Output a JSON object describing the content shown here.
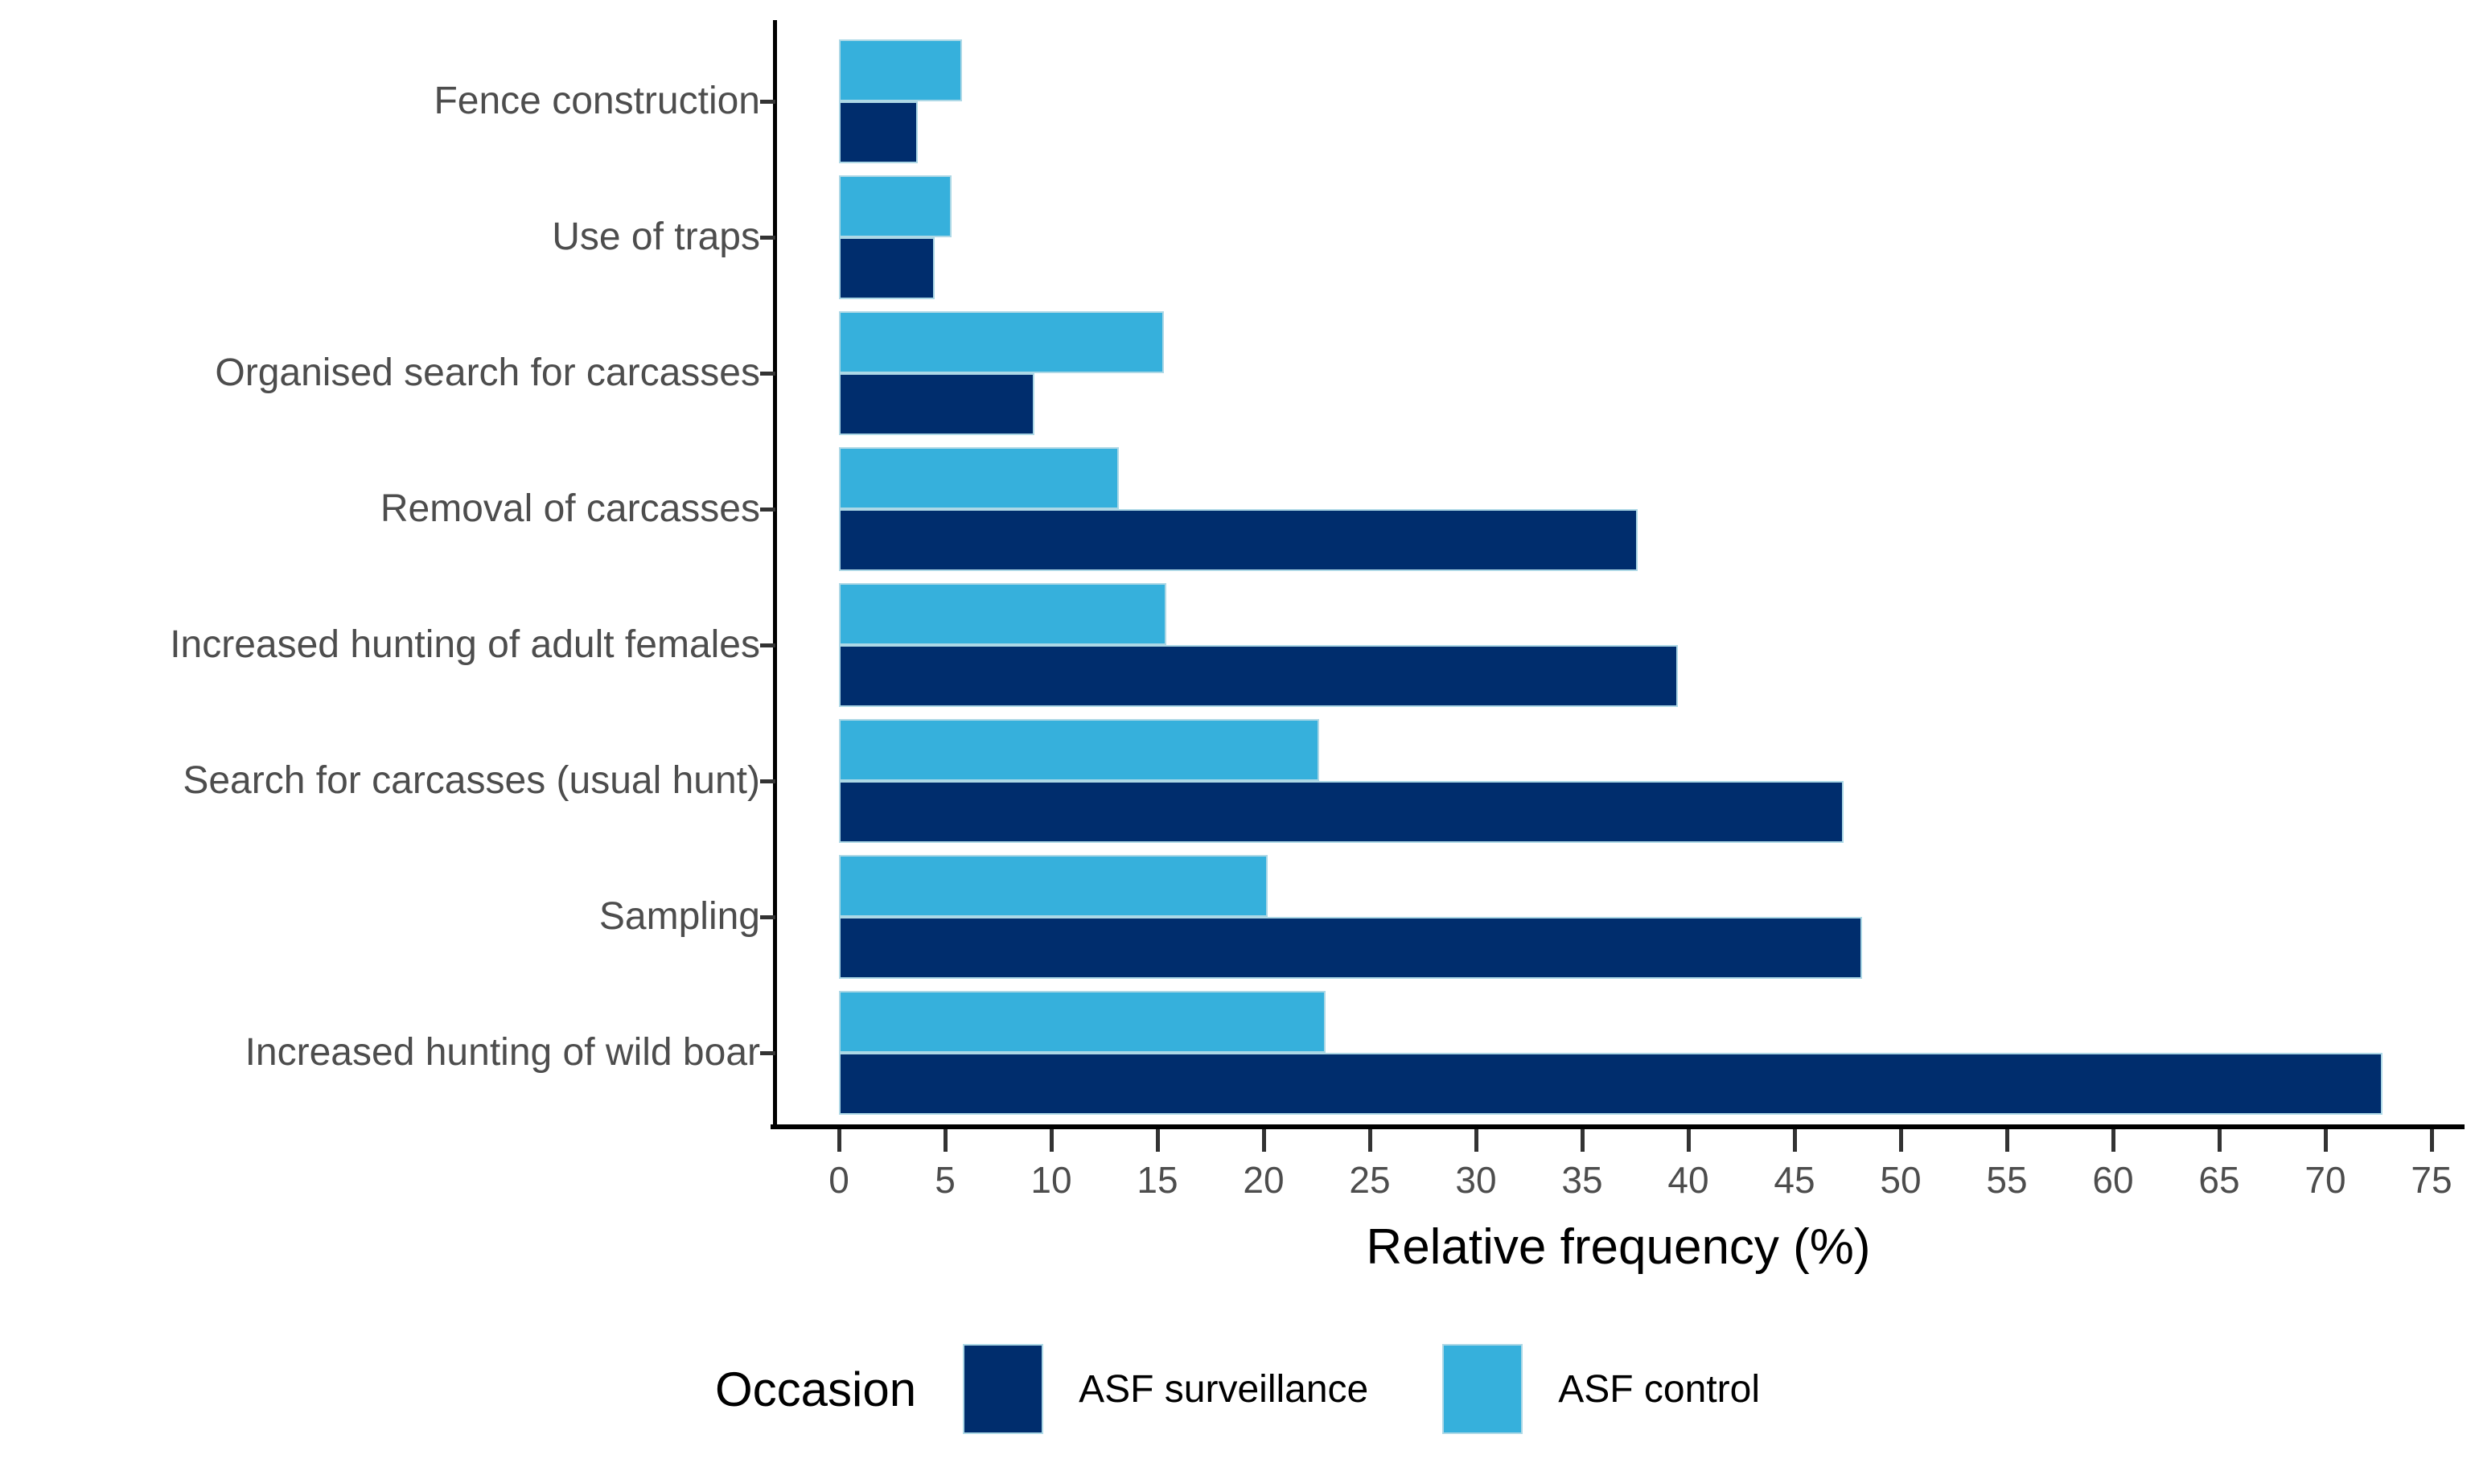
{
  "chart_data": {
    "type": "bar",
    "orientation": "horizontal",
    "xlabel": "Relative frequency (%)",
    "ylabel": "",
    "xlim": [
      0,
      75
    ],
    "xtick_step": 5,
    "xticks": [
      0,
      5,
      10,
      15,
      20,
      25,
      30,
      35,
      40,
      45,
      50,
      55,
      60,
      65,
      70,
      75
    ],
    "grid": false,
    "categories": [
      "Fence construction",
      "Use of traps",
      "Organised search for carcasses",
      "Removal of carcasses",
      "Increased hunting of adult females",
      "Search for carcasses (usual hunt)",
      "Sampling",
      "Increased hunting of wild boar"
    ],
    "series": [
      {
        "name": "ASF surveillance",
        "color": "#002d6d",
        "values": [
          3.7,
          4.5,
          9.2,
          37.6,
          39.5,
          47.3,
          48.2,
          72.7
        ]
      },
      {
        "name": "ASF control",
        "color": "#36b0dc",
        "values": [
          5.8,
          5.3,
          15.3,
          13.2,
          15.4,
          22.6,
          20.2,
          22.9
        ]
      }
    ],
    "legend": {
      "title": "Occasion",
      "position": "bottom"
    },
    "colors": {
      "bar_border": "#add8e6",
      "axis_line": "#000000",
      "tick_mark": "#333333",
      "tick_text": "#4d4d4d"
    }
  }
}
